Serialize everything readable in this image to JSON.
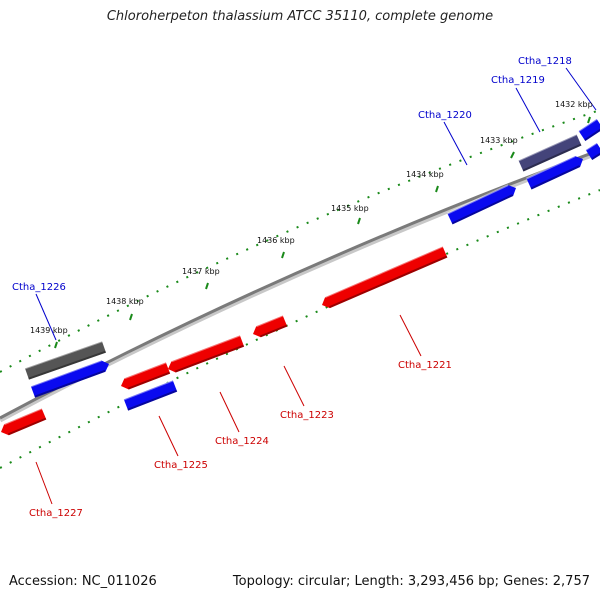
{
  "title": "Chloroherpeton thalassium ATCC 35110, complete genome",
  "footer": {
    "accession": "Accession: NC_011026",
    "topology": "Topology: circular; Length: 3,293,456 bp; Genes: 2,757"
  },
  "colors": {
    "forward": "#0a0af0",
    "reverse": "#ee0000",
    "gray_feature": "#555555",
    "purple_feature": "#44447a",
    "backbone": "#7a7a7a",
    "tick": "#1a8a1a",
    "label_forward": "#0000cc",
    "label_reverse": "#cc0000"
  },
  "kbp_ticks": [
    "1432 kbp",
    "1433 kbp",
    "1434 kbp",
    "1435 kbp",
    "1436 kbp",
    "1437 kbp",
    "1438 kbp",
    "1439 kbp"
  ],
  "gene_labels": [
    {
      "text": "Ctha_1218",
      "strand": "forward"
    },
    {
      "text": "Ctha_1219",
      "strand": "forward"
    },
    {
      "text": "Ctha_1220",
      "strand": "forward"
    },
    {
      "text": "Ctha_1221",
      "strand": "reverse"
    },
    {
      "text": "Ctha_1223",
      "strand": "reverse"
    },
    {
      "text": "Ctha_1224",
      "strand": "reverse"
    },
    {
      "text": "Ctha_1225",
      "strand": "reverse"
    },
    {
      "text": "Ctha_1226",
      "strand": "forward"
    },
    {
      "text": "Ctha_1227",
      "strand": "reverse"
    }
  ]
}
